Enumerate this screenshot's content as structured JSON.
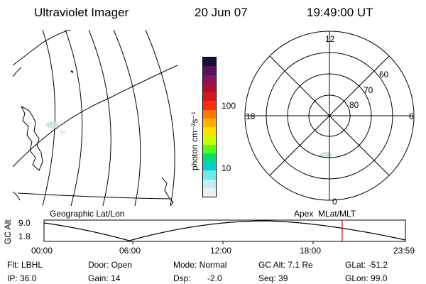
{
  "header": {
    "title": "Ultraviolet Imager",
    "date": "20 Jun 07",
    "time": "19:49:00 UT"
  },
  "colorbar": {
    "unit_label": "photon cm⁻²s⁻¹",
    "tick_labels": [
      "100",
      "10"
    ],
    "colors": [
      "#1a0d3a",
      "#5a1060",
      "#8a1060",
      "#b01030",
      "#d81818",
      "#ff2a10",
      "#ff7a00",
      "#ffb000",
      "#ffe000",
      "#c8ff00",
      "#50ff20",
      "#00e070",
      "#00d0d0",
      "#70e8e8",
      "#c0f0f0",
      "#e8f4f4"
    ]
  },
  "left_panel": {
    "caption": "Geographic Lat/Lon"
  },
  "right_panel": {
    "caption": "Apex  MLat/MLT",
    "mlt_labels": {
      "top": "12",
      "left": "18",
      "right": "6",
      "bottom": "0"
    },
    "lat_labels": [
      "60",
      "70",
      "80"
    ]
  },
  "timeline": {
    "ylabel": "GC Alt",
    "y_ticks": [
      "9.0",
      "1.8"
    ],
    "x_ticks": [
      "00:00",
      "06:00",
      "12:00",
      "18:00",
      "23:59"
    ],
    "current_time_fraction": 0.826
  },
  "info": {
    "filter": "Flt: LBHL",
    "ip": "IP: 36.0",
    "door": "Door: Open",
    "gain": "Gain: 14",
    "mode": "Mode: Normal",
    "dsp_label": "Dsp:",
    "dsp_value": "-2.0",
    "gc_alt": "GC Alt: 7.1 Re",
    "seq": "Seq: 39",
    "glat": "GLat: -51.2",
    "glon": "GLon: 99.0"
  }
}
